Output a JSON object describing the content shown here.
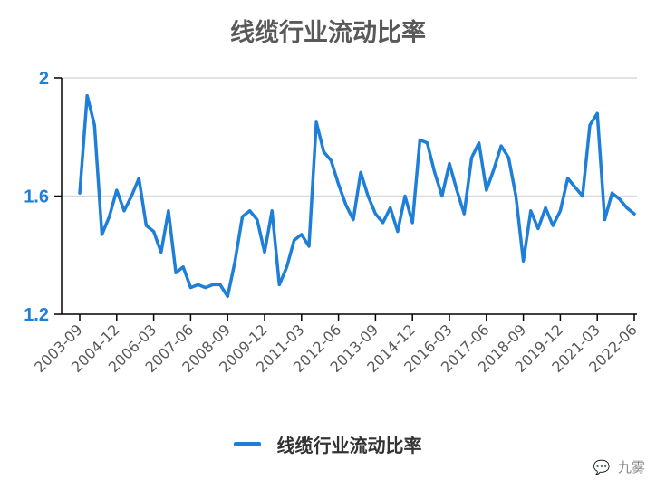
{
  "chart_data": {
    "type": "line",
    "title": "线缆行业流动比率",
    "xlabel": "",
    "ylabel": "",
    "ylim": [
      1.2,
      2.0
    ],
    "yticks": [
      "2",
      "1.6",
      "1.2"
    ],
    "tick_labels": [
      "2003-09",
      "2004-12",
      "2006-03",
      "2007-06",
      "2008-09",
      "2009-12",
      "2011-03",
      "2012-06",
      "2013-09",
      "2014-12",
      "2016-03",
      "2017-06",
      "2018-09",
      "2019-12",
      "2021-03",
      "2022-06"
    ],
    "grid": true,
    "legend_position": "bottom",
    "series": [
      {
        "name": "线缆行业流动比率",
        "color": "#1e7fd8",
        "values": [
          1.61,
          1.94,
          1.84,
          1.47,
          1.53,
          1.62,
          1.55,
          1.6,
          1.66,
          1.5,
          1.48,
          1.41,
          1.55,
          1.34,
          1.36,
          1.29,
          1.3,
          1.29,
          1.3,
          1.3,
          1.26,
          1.38,
          1.53,
          1.55,
          1.52,
          1.41,
          1.55,
          1.3,
          1.36,
          1.45,
          1.47,
          1.43,
          1.85,
          1.75,
          1.72,
          1.64,
          1.57,
          1.52,
          1.68,
          1.6,
          1.54,
          1.51,
          1.56,
          1.48,
          1.6,
          1.51,
          1.79,
          1.78,
          1.68,
          1.6,
          1.71,
          1.62,
          1.54,
          1.73,
          1.78,
          1.62,
          1.69,
          1.77,
          1.73,
          1.6,
          1.38,
          1.55,
          1.49,
          1.56,
          1.5,
          1.55,
          1.66,
          1.63,
          1.6,
          1.84,
          1.88,
          1.52,
          1.61,
          1.59,
          1.56,
          1.54
        ]
      }
    ]
  },
  "legend": {
    "label": "线缆行业流动比率"
  },
  "watermark": {
    "icon": "wechat-icon",
    "text": "九雾"
  }
}
